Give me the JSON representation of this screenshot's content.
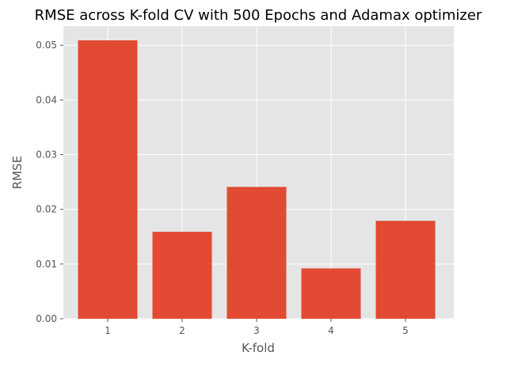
{
  "chart_data": {
    "type": "bar",
    "title": "RMSE across K-fold CV with 500 Epochs and Adamax optimizer",
    "xlabel": "K-fold",
    "ylabel": "RMSE",
    "categories": [
      "1",
      "2",
      "3",
      "4",
      "5"
    ],
    "values": [
      0.0509,
      0.0159,
      0.0241,
      0.0092,
      0.0179
    ],
    "ylim": [
      0,
      0.0535
    ],
    "yticks": [
      "0.00",
      "0.01",
      "0.02",
      "0.03",
      "0.04",
      "0.05"
    ],
    "ytick_values": [
      0,
      0.01,
      0.02,
      0.03,
      0.04,
      0.05
    ],
    "grid": true,
    "colors": {
      "bar": "#E24A33",
      "plot_background": "#E5E5E5",
      "grid": "#FFFFFF"
    }
  }
}
